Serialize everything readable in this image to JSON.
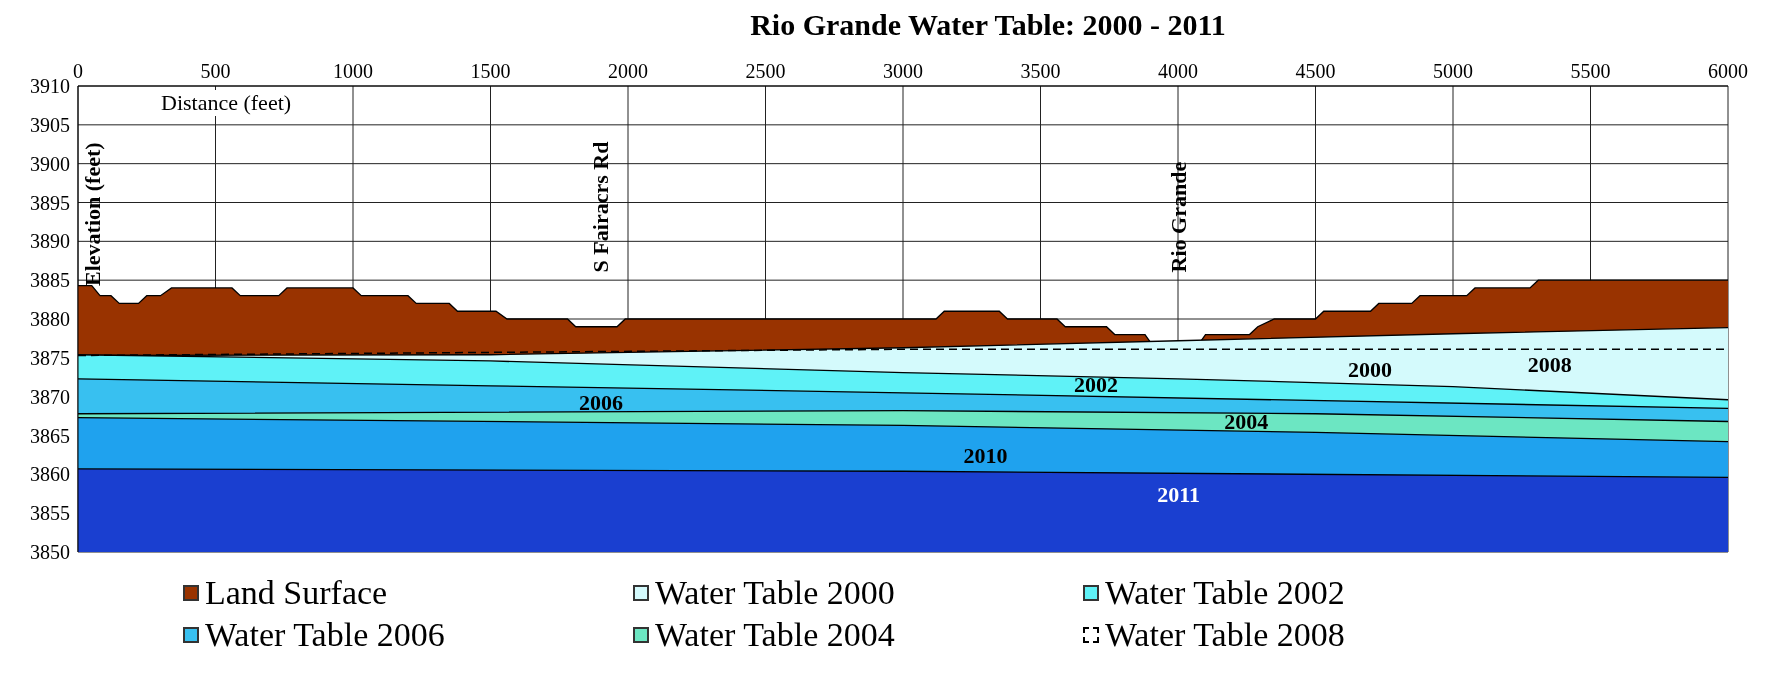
{
  "chart_data": {
    "type": "area",
    "title": "Rio Grande Water Table: 2000 - 2011",
    "xlabel": "Distance (feet)",
    "ylabel": "Elevation (feet)",
    "xlim": [
      0,
      6000
    ],
    "xticks": [
      0,
      500,
      1000,
      1500,
      2000,
      2500,
      3000,
      3500,
      4000,
      4500,
      5000,
      5500,
      6000
    ],
    "ylim": [
      3850,
      3910
    ],
    "yticks": [
      3850,
      3855,
      3860,
      3865,
      3870,
      3875,
      3880,
      3885,
      3890,
      3895,
      3900,
      3905,
      3910
    ],
    "grid": true,
    "legend": "bottom",
    "series": [
      {
        "name": "Land Surface",
        "color": "#993300",
        "x": [
          0,
          50,
          80,
          120,
          150,
          220,
          250,
          300,
          340,
          560,
          590,
          730,
          760,
          1000,
          1030,
          1200,
          1230,
          1350,
          1380,
          1520,
          1560,
          1780,
          1810,
          1960,
          1990,
          3120,
          3150,
          3350,
          3380,
          3560,
          3590,
          3740,
          3770,
          3880,
          3920,
          4060,
          4100,
          4260,
          4290,
          4350,
          4500,
          4530,
          4700,
          4730,
          4850,
          4880,
          5050,
          5080,
          5280,
          5310,
          6000
        ],
        "values": [
          3884.3,
          3884.3,
          3883,
          3883,
          3882,
          3882,
          3883,
          3883,
          3884,
          3884,
          3883,
          3883,
          3884,
          3884,
          3883,
          3883,
          3882,
          3882,
          3881,
          3881,
          3880,
          3880,
          3879,
          3879,
          3880,
          3880,
          3881,
          3881,
          3880,
          3880,
          3879,
          3879,
          3878,
          3878,
          3876,
          3876,
          3878,
          3878,
          3879,
          3880,
          3880,
          3881,
          3881,
          3882,
          3882,
          3883,
          3883,
          3884,
          3884,
          3885,
          3885
        ]
      },
      {
        "name": "Water Table 2000",
        "color": "#d4fafc",
        "x": [
          0,
          1500,
          3000,
          4000,
          5000,
          6000
        ],
        "values": [
          3875.3,
          3875.4,
          3876.3,
          3877.2,
          3878.1,
          3878.9
        ]
      },
      {
        "name": "Water Table 2002",
        "color": "#5ff2f7",
        "x": [
          0,
          1500,
          3000,
          4000,
          5000,
          6000
        ],
        "values": [
          3875.4,
          3874.6,
          3873.1,
          3872.3,
          3871.3,
          3869.6
        ]
      },
      {
        "name": "Water Table 2006",
        "color": "#38c0f0",
        "x": [
          0,
          1500,
          3000,
          6000
        ],
        "values": [
          3872.3,
          3871.4,
          3870.5,
          3868.5
        ]
      },
      {
        "name": "Water Table 2004",
        "color": "#6ce6c2",
        "x": [
          0,
          3000,
          4500,
          6000
        ],
        "values": [
          3867.8,
          3868.2,
          3867.8,
          3866.8
        ]
      },
      {
        "name": "Water Table 2008",
        "type": "line",
        "line_style": "dashed",
        "color": "#000000",
        "x": [
          0,
          3000,
          6000
        ],
        "values": [
          3875.3,
          3876.1,
          3876.1
        ]
      },
      {
        "color": "#1fa2ee",
        "x": [
          0,
          3000,
          4500,
          6000
        ],
        "values": [
          3867.3,
          3866.3,
          3865.4,
          3864.2
        ]
      },
      {
        "color": "#1a3fd0",
        "x": [
          0,
          3000,
          6000
        ],
        "values": [
          3860.7,
          3860.4,
          3859.6
        ]
      }
    ],
    "annotations": [
      "S Fairacrs Rd",
      "Rio Grande",
      "2000",
      "2002",
      "2006",
      "2004",
      "2008",
      "2010",
      "2011"
    ]
  }
}
